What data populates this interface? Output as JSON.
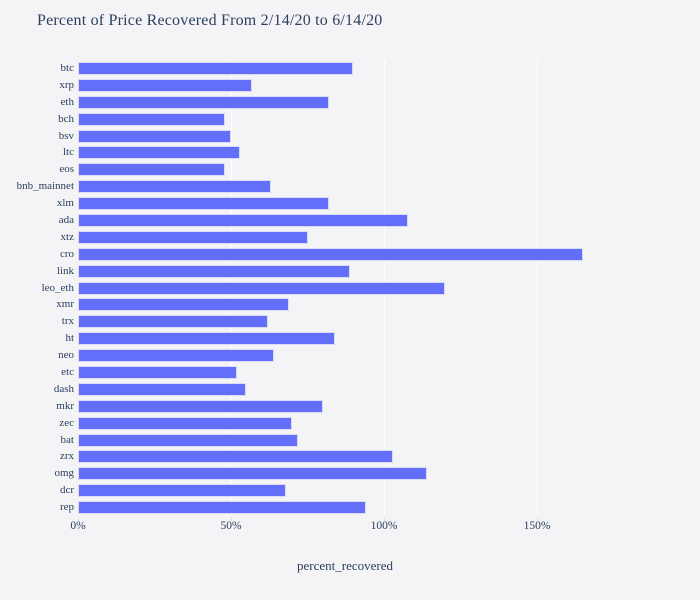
{
  "title": "Percent of Price Recovered From 2/14/20 to 6/14/20",
  "chart_data": {
    "type": "bar",
    "orientation": "horizontal",
    "title": "Percent of Price Recovered From 2/14/20 to 6/14/20",
    "xlabel": "percent_recovered",
    "ylabel": "",
    "categories": [
      "btc",
      "xrp",
      "eth",
      "bch",
      "bsv",
      "ltc",
      "eos",
      "bnb_mainnet",
      "xlm",
      "ada",
      "xtz",
      "cro",
      "link",
      "leo_eth",
      "xmr",
      "trx",
      "ht",
      "neo",
      "etc",
      "dash",
      "mkr",
      "zec",
      "bat",
      "zrx",
      "omg",
      "dcr",
      "rep"
    ],
    "values": [
      90,
      57,
      82,
      48,
      50,
      53,
      48,
      63,
      82,
      108,
      75,
      165,
      89,
      120,
      69,
      62,
      84,
      64,
      52,
      55,
      80,
      70,
      72,
      103,
      114,
      68,
      94
    ],
    "unit": "%",
    "xlim": [
      0,
      174.5
    ],
    "x_ticks": [
      {
        "value": 0,
        "label": "0%"
      },
      {
        "value": 50,
        "label": "50%"
      },
      {
        "value": 100,
        "label": "100%"
      },
      {
        "value": 150,
        "label": "150%"
      }
    ],
    "grid": "vertical-white-gridlines-at-ticks",
    "legend": "none",
    "colors": {
      "bar": "#636efa",
      "bar_border": "#d9dcf2",
      "gridline": "#ffffff",
      "background": "#f4f4f6",
      "text": "#2a3f5f"
    }
  }
}
